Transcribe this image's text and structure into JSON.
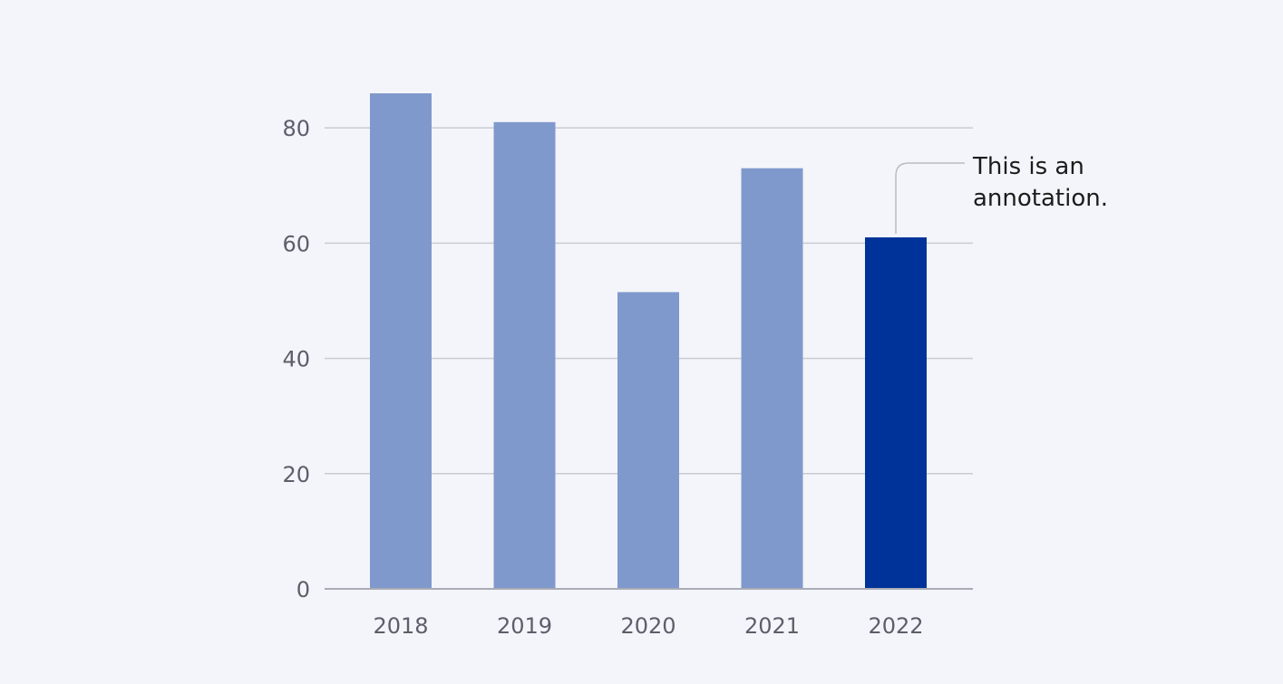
{
  "chart_data": {
    "type": "bar",
    "categories": [
      "2018",
      "2019",
      "2020",
      "2021",
      "2022"
    ],
    "values": [
      86,
      81,
      51.5,
      73,
      61
    ],
    "ylim": [
      0,
      86
    ],
    "yticks": [
      0,
      20,
      40,
      60,
      80
    ],
    "grid": true,
    "colors": {
      "bar": "#8099cc",
      "highlight": "#003399"
    },
    "highlight_index": 4,
    "annotation": {
      "text_lines": [
        "This is an",
        "annotation."
      ],
      "target_index": 4
    }
  }
}
